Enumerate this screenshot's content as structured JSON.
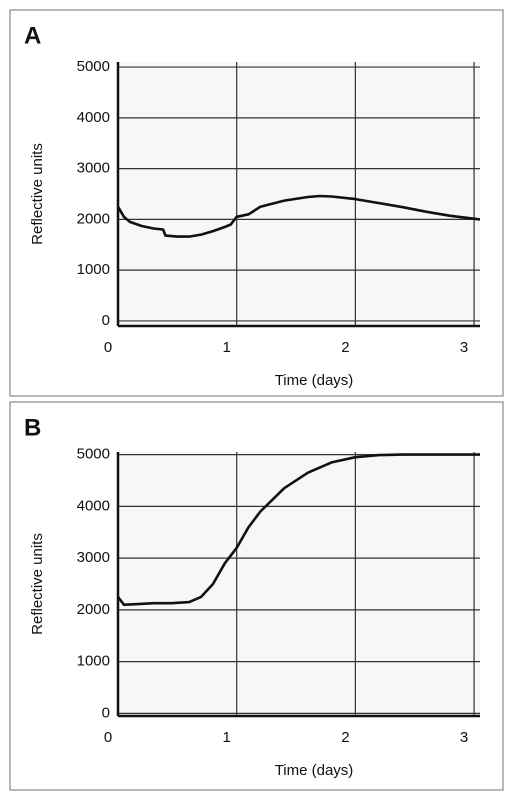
{
  "chart_data": [
    {
      "type": "line",
      "label": "A",
      "x_label": "Time (days)",
      "y_label": "Reflective units",
      "xlim": [
        0,
        3.05
      ],
      "ylim": [
        -100,
        5100
      ],
      "xticks": [
        0,
        1,
        2,
        3
      ],
      "yticks": [
        0,
        1000,
        2000,
        3000,
        4000,
        5000
      ],
      "grid": true,
      "series": [
        {
          "color": "#111111",
          "x": [
            0,
            0.05,
            0.1,
            0.2,
            0.3,
            0.38,
            0.4,
            0.5,
            0.6,
            0.7,
            0.8,
            0.9,
            0.95,
            1.0,
            1.1,
            1.2,
            1.4,
            1.6,
            1.7,
            1.8,
            2.0,
            2.2,
            2.4,
            2.6,
            2.8,
            3.05
          ],
          "values": [
            2250,
            2050,
            1950,
            1870,
            1820,
            1800,
            1680,
            1660,
            1660,
            1700,
            1770,
            1850,
            1900,
            2050,
            2100,
            2250,
            2370,
            2440,
            2460,
            2450,
            2400,
            2320,
            2240,
            2150,
            2070,
            2000
          ]
        }
      ]
    },
    {
      "type": "line",
      "label": "B",
      "x_label": "Time (days)",
      "y_label": "Reflective units",
      "xlim": [
        0,
        3.05
      ],
      "ylim": [
        -50,
        5050
      ],
      "xticks": [
        0,
        1,
        2,
        3
      ],
      "yticks": [
        0,
        1000,
        2000,
        3000,
        4000,
        5000
      ],
      "grid": true,
      "series": [
        {
          "color": "#111111",
          "x": [
            0,
            0.05,
            0.15,
            0.3,
            0.45,
            0.6,
            0.7,
            0.8,
            0.9,
            1.0,
            1.1,
            1.2,
            1.4,
            1.6,
            1.8,
            2.0,
            2.2,
            2.4,
            2.7,
            3.05
          ],
          "values": [
            2250,
            2100,
            2110,
            2130,
            2130,
            2150,
            2250,
            2500,
            2900,
            3200,
            3600,
            3900,
            4350,
            4650,
            4850,
            4950,
            4990,
            5000,
            5000,
            5000
          ]
        }
      ]
    }
  ]
}
